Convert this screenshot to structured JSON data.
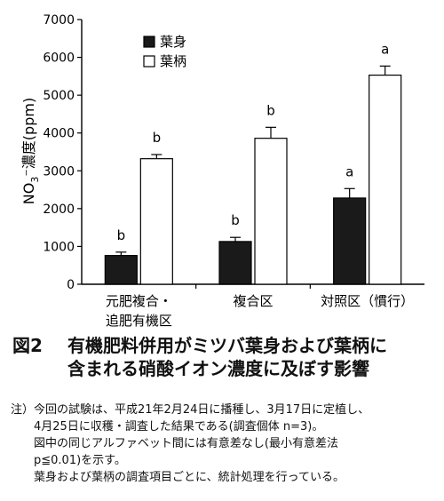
{
  "chart_data": {
    "type": "bar",
    "ylabel": "NO3⁻濃度(ppm)",
    "ylabel_parts": [
      "NO",
      "3",
      "⁻濃度(ppm)"
    ],
    "ylim": [
      0,
      7000
    ],
    "yticks": [
      0,
      1000,
      2000,
      3000,
      4000,
      5000,
      6000,
      7000
    ],
    "categories": [
      [
        "元肥複合・",
        "追肥有機区"
      ],
      [
        "複合区"
      ],
      [
        "対照区（慣行）"
      ]
    ],
    "series": [
      {
        "name": "葉身",
        "color": "#1a1a1a",
        "values": [
          760,
          1130,
          2280
        ],
        "errors": [
          90,
          110,
          250
        ],
        "labels": [
          "b",
          "b",
          "a"
        ]
      },
      {
        "name": "葉柄",
        "color": "#ffffff",
        "values": [
          3320,
          3860,
          5530
        ],
        "errors": [
          110,
          290,
          240
        ],
        "labels": [
          "b",
          "b",
          "a"
        ]
      }
    ],
    "legend_position": "top-left",
    "grid": false
  },
  "caption": {
    "number": "図2",
    "line1": "有機肥料併用がミツバ葉身および葉柄に",
    "line2": "含まれる硝酸イオン濃度に及ぼす影響"
  },
  "notes": {
    "head": "注）",
    "line1": "今回の試験は、平成21年2月24日に播種し、3月17日に定植し、",
    "line2": "4月25日に収穫・調査した結果である(調査個体 n=3)。",
    "line3": "図中の同じアルファベット間には有意差なし(最小有意差法",
    "line4": "p≦0.01)を示す。",
    "line5": "葉身および葉柄の調査項目ごとに、統計処理を行っている。"
  }
}
